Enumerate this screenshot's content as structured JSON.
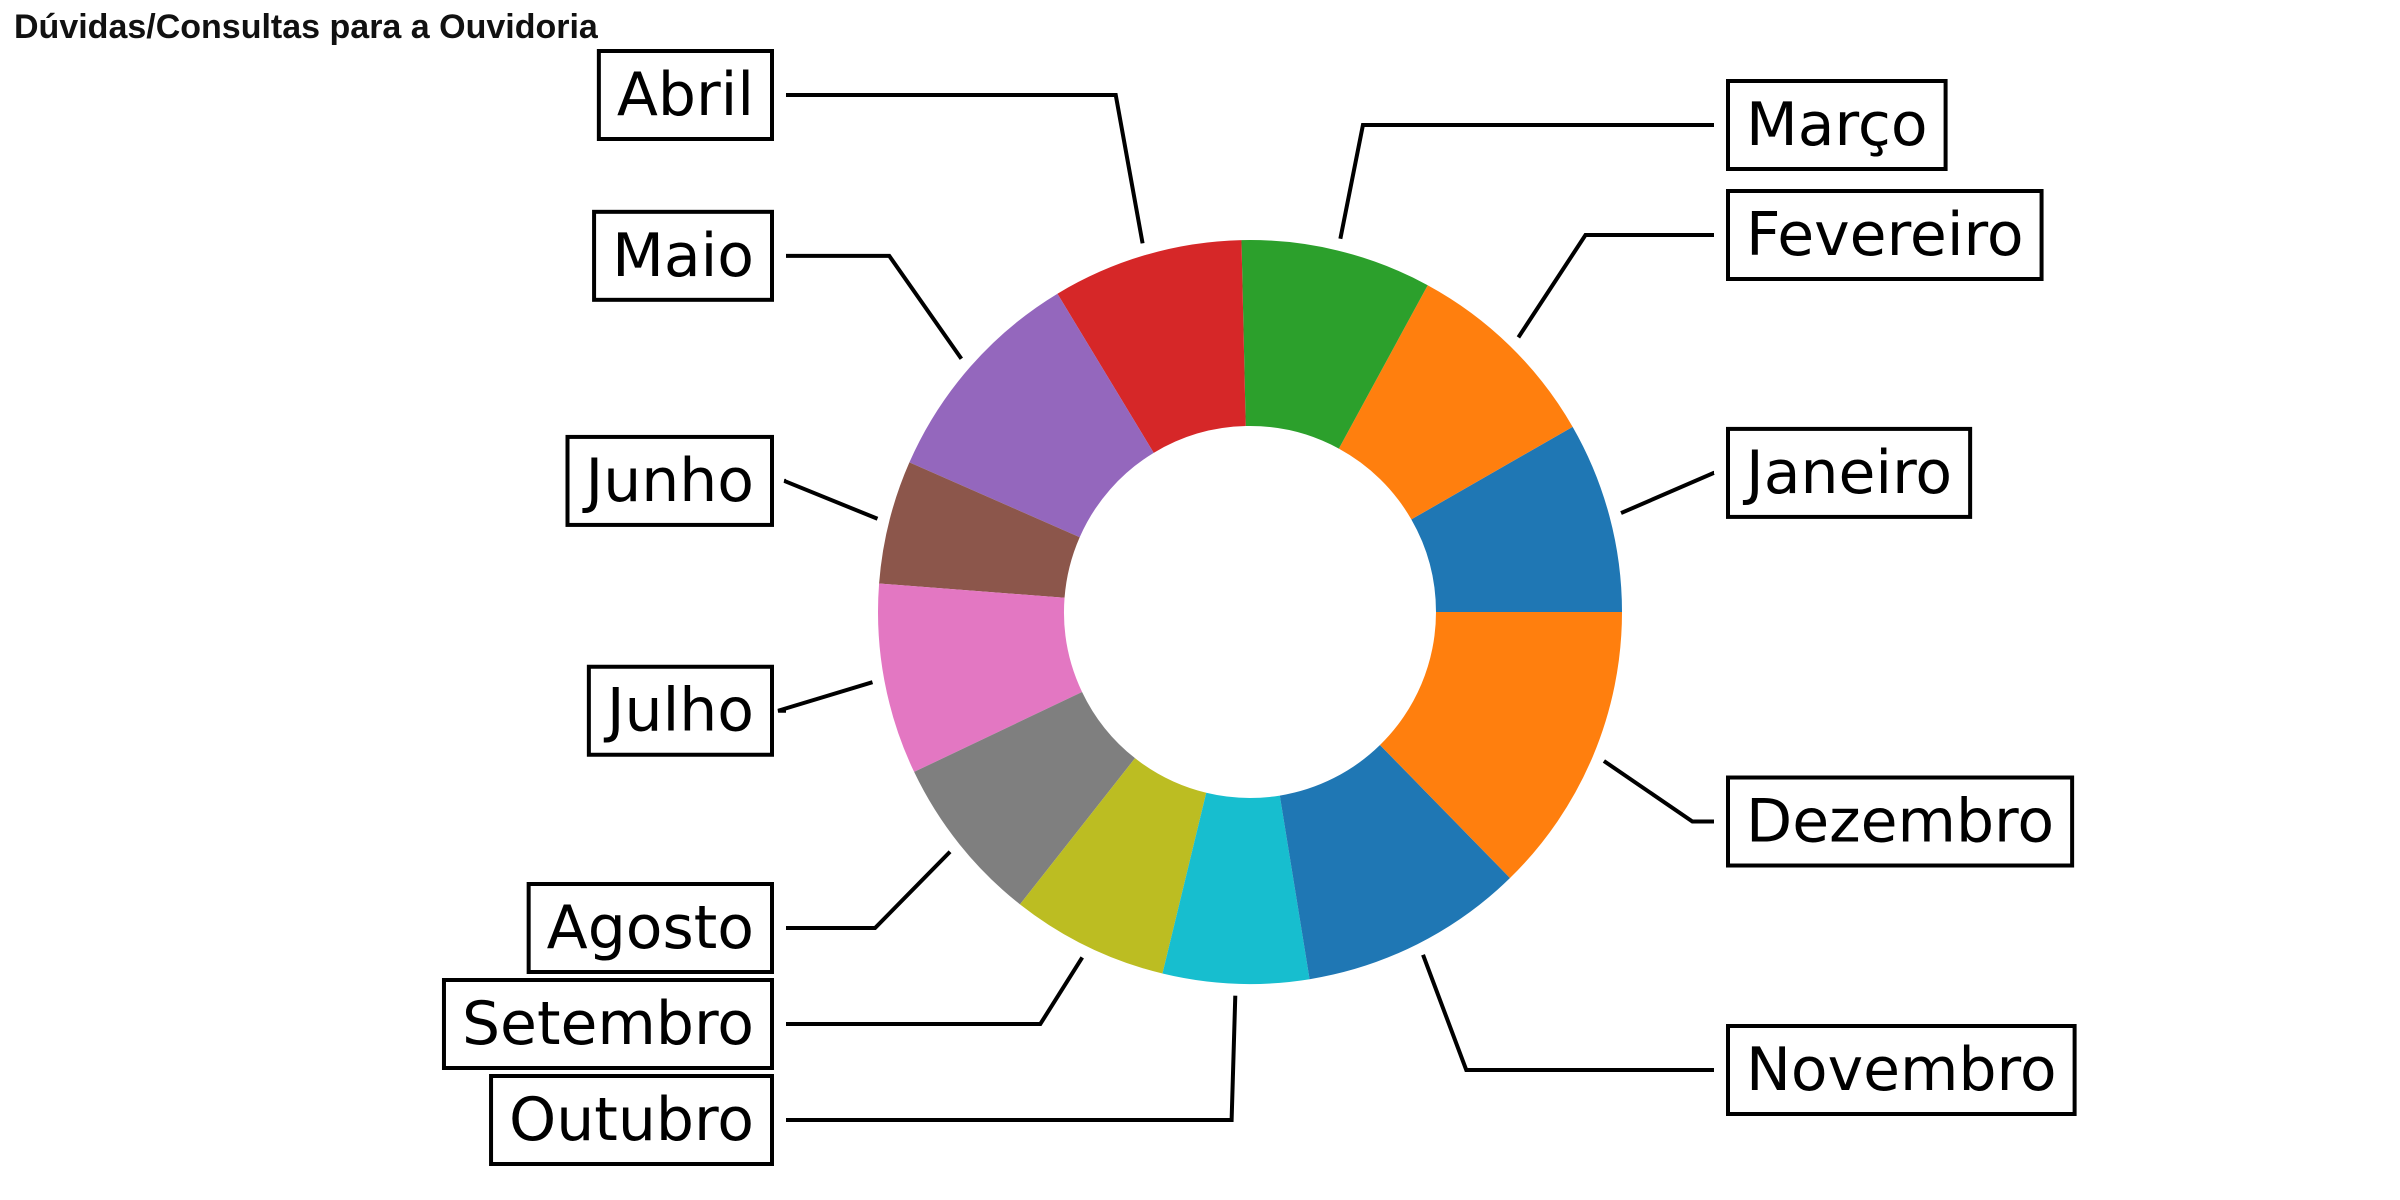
{
  "title": "Dúvidas/Consultas para a Ouvidoria",
  "chart_data": {
    "type": "donut",
    "title": "Dúvidas/Consultas para a Ouvidoria",
    "start_angle_deg": 0,
    "direction": "counterclockwise",
    "slices": [
      {
        "label": "Janeiro",
        "value": 8.5,
        "color": "#1f77b4"
      },
      {
        "label": "Fevereiro",
        "value": 9.0,
        "color": "#ff7f0e"
      },
      {
        "label": "Março",
        "value": 8.5,
        "color": "#2ca02c"
      },
      {
        "label": "Abril",
        "value": 8.5,
        "color": "#d62728"
      },
      {
        "label": "Maio",
        "value": 10.0,
        "color": "#9467bd"
      },
      {
        "label": "Junho",
        "value": 5.5,
        "color": "#8c564b"
      },
      {
        "label": "Julho",
        "value": 8.5,
        "color": "#e377c2"
      },
      {
        "label": "Agosto",
        "value": 7.5,
        "color": "#7f7f7f"
      },
      {
        "label": "Setembro",
        "value": 7.0,
        "color": "#bcbd22"
      },
      {
        "label": "Outubro",
        "value": 6.5,
        "color": "#17becf"
      },
      {
        "label": "Novembro",
        "value": 10.0,
        "color": "#1f77b4"
      },
      {
        "label": "Dezembro",
        "value": 13.0,
        "color": "#ff7f0e"
      }
    ]
  }
}
